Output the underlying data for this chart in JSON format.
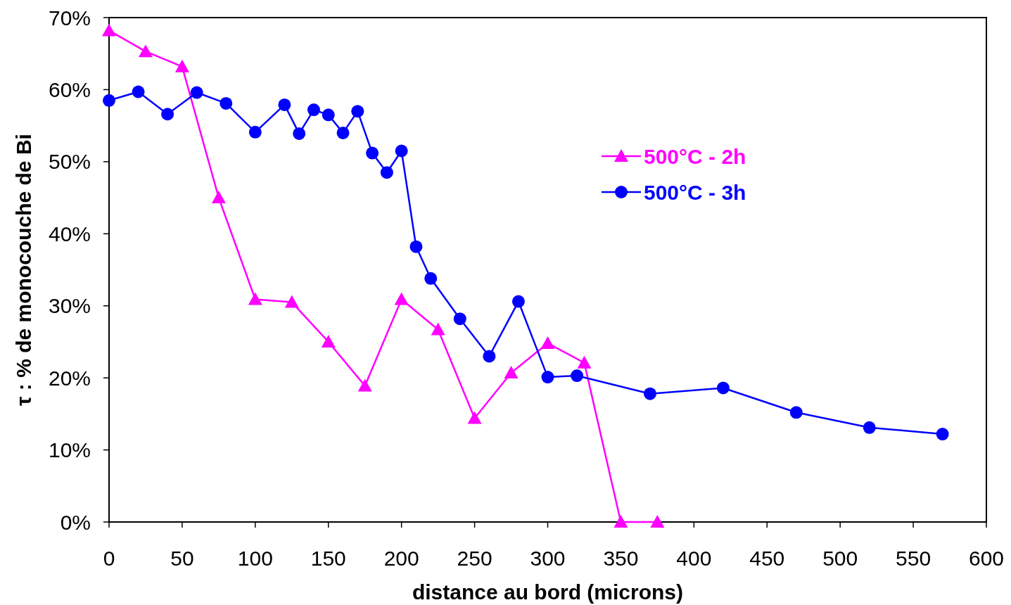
{
  "chart_data": {
    "type": "line",
    "xlabel": "distance au bord (microns)",
    "ylabel": "τ : % de monocouche de Bi",
    "xlim": [
      0,
      600
    ],
    "xticks": [
      0,
      50,
      100,
      150,
      200,
      250,
      300,
      350,
      400,
      450,
      500,
      550,
      600
    ],
    "ylim": [
      0,
      70
    ],
    "yticks": [
      {
        "value": 0,
        "label": "0%"
      },
      {
        "value": 10,
        "label": "10%"
      },
      {
        "value": 20,
        "label": "20%"
      },
      {
        "value": 30,
        "label": "30%"
      },
      {
        "value": 40,
        "label": "40%"
      },
      {
        "value": 50,
        "label": "50%"
      },
      {
        "value": 60,
        "label": "60%"
      },
      {
        "value": 70,
        "label": "70%"
      }
    ],
    "grid": false,
    "legend": "top right",
    "line_style": "solid",
    "series": [
      {
        "name": "500°C - 2h",
        "color": "#ff00ff",
        "marker": "triangle",
        "x": [
          0,
          25,
          50,
          75,
          100,
          125,
          150,
          175,
          200,
          225,
          250,
          275,
          300,
          325,
          350,
          375
        ],
        "values": [
          68.2,
          65.3,
          63.2,
          45.0,
          30.9,
          30.5,
          25.0,
          18.9,
          30.9,
          26.7,
          14.4,
          20.7,
          24.8,
          22.1,
          0,
          0
        ]
      },
      {
        "name": "500°C - 3h",
        "color": "#0000ff",
        "marker": "circle",
        "x": [
          0,
          20,
          40,
          60,
          80,
          100,
          120,
          130,
          140,
          150,
          160,
          170,
          180,
          190,
          200,
          210,
          220,
          240,
          260,
          280,
          300,
          320,
          370,
          420,
          470,
          520,
          570
        ],
        "values": [
          58.5,
          59.7,
          56.6,
          59.6,
          58.1,
          54.1,
          57.9,
          53.9,
          57.2,
          56.5,
          54.0,
          57.0,
          51.2,
          48.5,
          51.5,
          38.2,
          33.8,
          28.2,
          23.0,
          30.6,
          20.1,
          20.3,
          17.8,
          18.6,
          15.2,
          13.1,
          12.2
        ]
      }
    ]
  }
}
